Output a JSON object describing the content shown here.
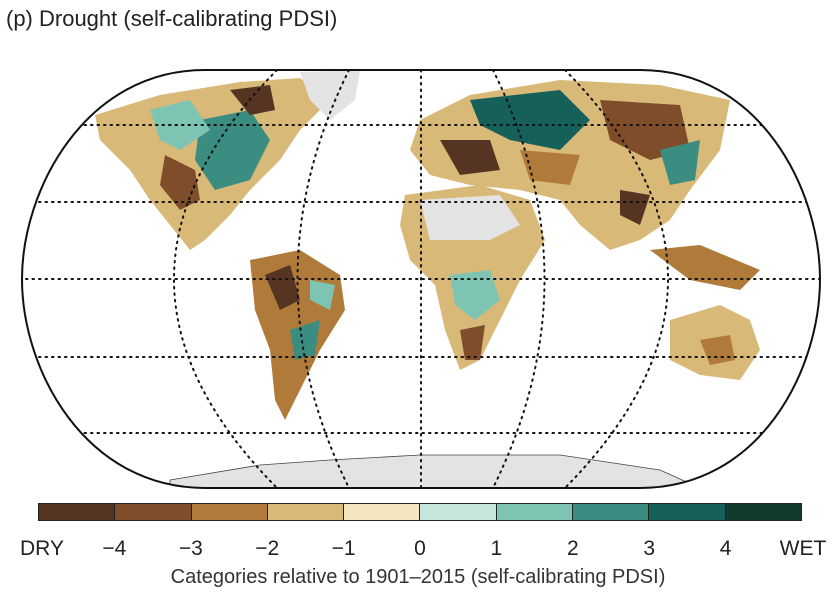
{
  "title": "(p) Drought (self-calibrating PDSI)",
  "legend": {
    "dry_label": "DRY",
    "wet_label": "WET",
    "ticks": [
      "−4",
      "−3",
      "−2",
      "−1",
      "0",
      "1",
      "2",
      "3",
      "4"
    ],
    "colors": [
      "#553522",
      "#804d2a",
      "#b07b3a",
      "#d9b978",
      "#f5e6bf",
      "#c6e6dd",
      "#7ec4b3",
      "#3a8d80",
      "#16605a",
      "#123a2e"
    ],
    "caption": "Categories relative to 1901–2015 (self-calibrating PDSI)"
  },
  "map": {
    "projection": "Robinson",
    "graticule": "dotted, 30° latitude / 60° longitude",
    "no_data_color": "#e3e3e3",
    "antarctica_color": "#e3e3e3"
  }
}
